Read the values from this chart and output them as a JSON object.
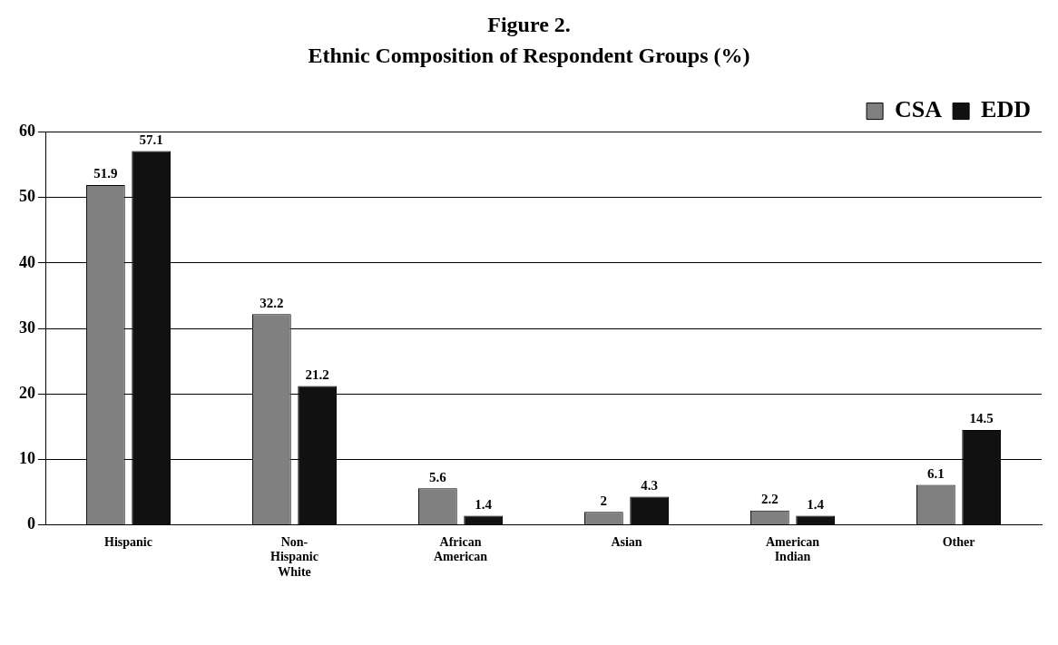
{
  "chart_data": {
    "type": "bar",
    "title": "Figure 2.",
    "subtitle": "Ethnic Composition of Respondent Groups (%)",
    "categories": [
      "Hispanic",
      "Non-Hispanic White",
      "African American",
      "Asian",
      "American Indian",
      "Other"
    ],
    "series": [
      {
        "name": "CSA",
        "color": "#808080",
        "values": [
          51.9,
          32.2,
          5.6,
          2,
          2.2,
          6.1
        ]
      },
      {
        "name": "EDD",
        "color": "#111111",
        "values": [
          57.1,
          21.2,
          1.4,
          4.3,
          1.4,
          14.5
        ]
      }
    ],
    "ylim": [
      0,
      60
    ],
    "yticks": [
      0,
      10,
      20,
      30,
      40,
      50,
      60
    ],
    "grid": "y",
    "legend": "top right",
    "data_labels": true
  }
}
